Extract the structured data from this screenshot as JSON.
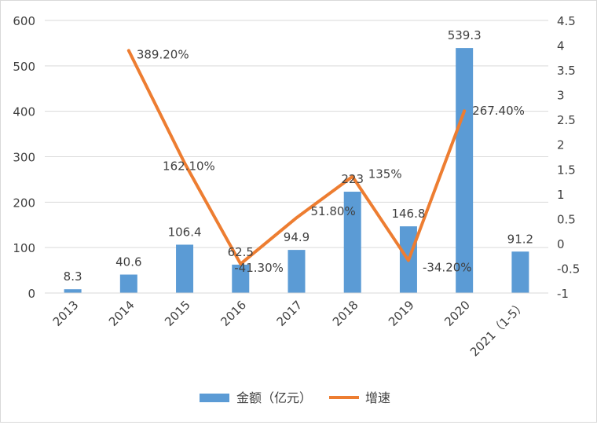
{
  "chart_data": {
    "type": "bar",
    "categories": [
      "2013",
      "2014",
      "2015",
      "2016",
      "2017",
      "2018",
      "2019",
      "2020",
      "2021（1-5）"
    ],
    "series": [
      {
        "name": "金额（亿元）",
        "type": "bar",
        "axis": "left",
        "color": "#5b9bd5",
        "values": [
          8.3,
          40.6,
          106.4,
          62.5,
          94.9,
          223,
          146.8,
          539.3,
          91.2
        ],
        "labels": [
          "8.3",
          "40.6",
          "106.4",
          "62.5",
          "94.9",
          "223",
          "146.8",
          "539.3",
          "91.2"
        ]
      },
      {
        "name": "增速",
        "type": "line",
        "axis": "right",
        "color": "#ed7d31",
        "values": [
          null,
          3.892,
          1.621,
          -0.413,
          0.518,
          1.35,
          -0.342,
          2.674,
          null
        ],
        "labels": [
          "",
          "389.20%",
          "162.10%",
          "-41.30%",
          "51.80%",
          "135%",
          "-34.20%",
          "267.40%",
          ""
        ]
      }
    ],
    "y_left": {
      "ylim": [
        0,
        600
      ],
      "ticks": [
        "0",
        "100",
        "200",
        "300",
        "400",
        "500",
        "600"
      ]
    },
    "y_right": {
      "ylim": [
        -1,
        4.5
      ],
      "ticks": [
        "-1",
        "-0.5",
        "0",
        "0.5",
        "1",
        "1.5",
        "2",
        "2.5",
        "3",
        "3.5",
        "4",
        "4.5"
      ]
    },
    "legend": {
      "position": "bottom",
      "items": [
        "金额（亿元）",
        "增速"
      ]
    },
    "grid": true
  }
}
